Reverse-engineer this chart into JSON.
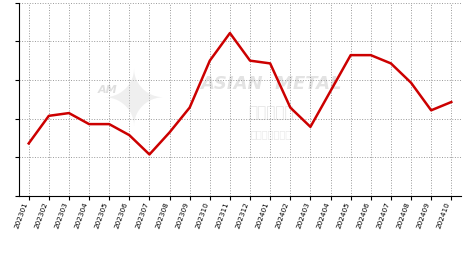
{
  "x_labels": [
    "202301",
    "202302",
    "202303",
    "202304",
    "202305",
    "202306",
    "202307",
    "202308",
    "202309",
    "202310",
    "202311",
    "202312",
    "202401",
    "202402",
    "202403",
    "202404",
    "202405",
    "202406",
    "202407",
    "202408",
    "202409",
    "202410"
  ],
  "y_values": [
    44,
    54,
    55,
    51,
    51,
    47,
    40,
    48,
    57,
    74,
    84,
    74,
    73,
    57,
    50,
    63,
    76,
    76,
    73,
    66,
    56,
    59
  ],
  "line_color": "#cc0000",
  "line_width": 1.8,
  "background_color": "#ffffff",
  "grid_color": "#999999",
  "watermark_text1": "ASIAN  METAL",
  "watermark_text2": "亚洲金属网",
  "watermark_subtext": "亚洲金属分析师",
  "ylim": [
    25,
    95
  ],
  "n_yticks": 6,
  "xlabel": "",
  "ylabel": ""
}
